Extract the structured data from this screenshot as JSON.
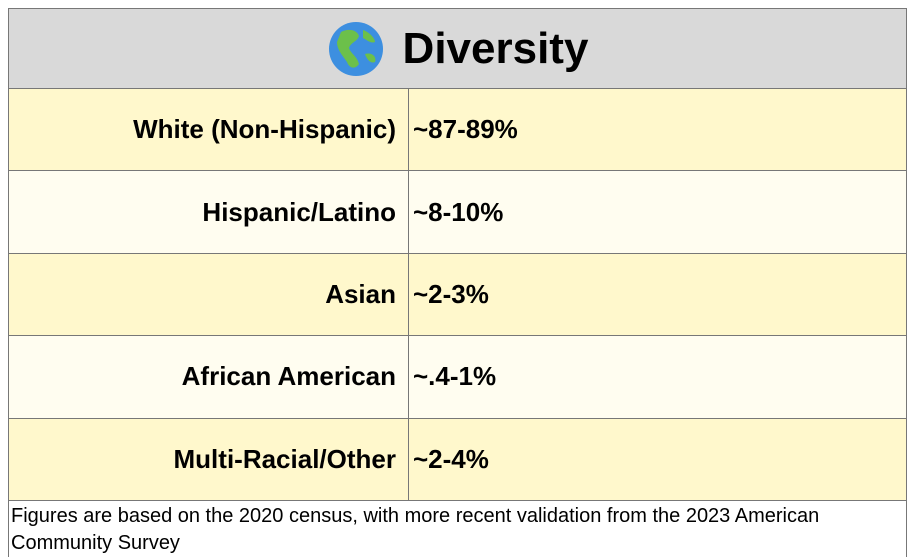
{
  "header": {
    "title": "Diversity"
  },
  "table": {
    "rows": [
      [
        "White (Non-Hispanic)",
        "~87-89%"
      ],
      [
        "Hispanic/Latino",
        "~8-10%"
      ],
      [
        "Asian",
        "~2-3%"
      ],
      [
        "African American",
        "~.4-1%"
      ],
      [
        "Multi-Racial/Other",
        "~2-4%"
      ]
    ]
  },
  "footnote": "Figures are based on the 2020 census, with more recent validation from the 2023 American Community Survey"
}
